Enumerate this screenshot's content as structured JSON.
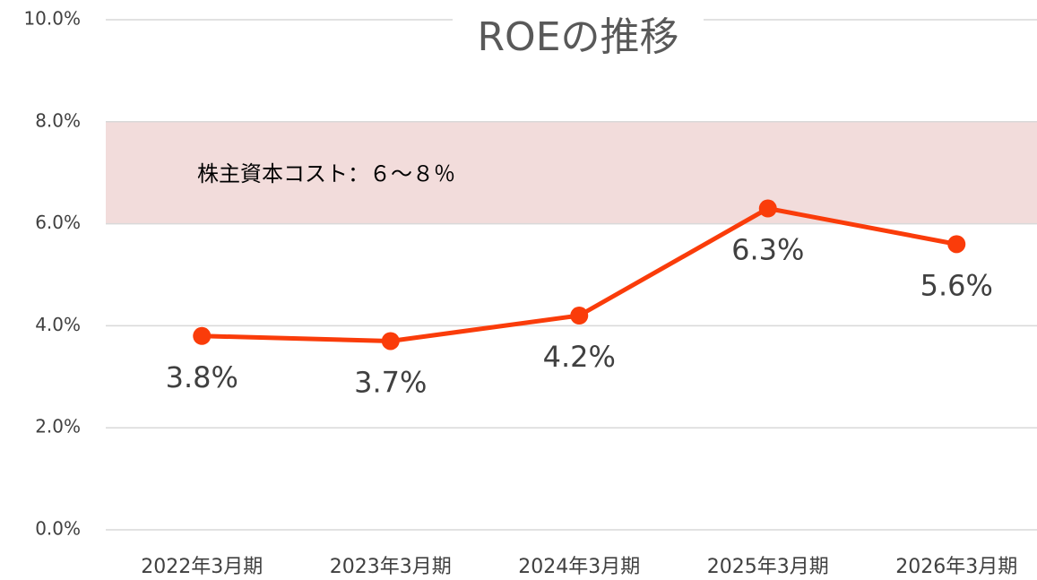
{
  "chart_data": {
    "type": "line",
    "title": "ROEの推移",
    "categories": [
      "2022年3月期",
      "2023年3月期",
      "2024年3月期",
      "2025年3月期",
      "2026年3月期"
    ],
    "series": [
      {
        "name": "ROE",
        "color": "#fa3c0a",
        "values": [
          3.8,
          3.7,
          4.2,
          6.3,
          5.6
        ],
        "value_labels": [
          "3.8%",
          "3.7%",
          "4.2%",
          "6.3%",
          "5.6%"
        ]
      }
    ],
    "ylim": [
      0,
      10
    ],
    "yticks": [
      {
        "value": 0,
        "label": "0.0%"
      },
      {
        "value": 2,
        "label": "2.0%"
      },
      {
        "value": 4,
        "label": "4.0%"
      },
      {
        "value": 6,
        "label": "6.0%"
      },
      {
        "value": 8,
        "label": "8.0%"
      },
      {
        "value": 10,
        "label": "10.0%"
      }
    ],
    "grid": true,
    "annotations": [
      {
        "text": "株主資本コスト：６～８％",
        "ymin": 6,
        "ymax": 8,
        "color": "#f2dcdb"
      }
    ]
  }
}
